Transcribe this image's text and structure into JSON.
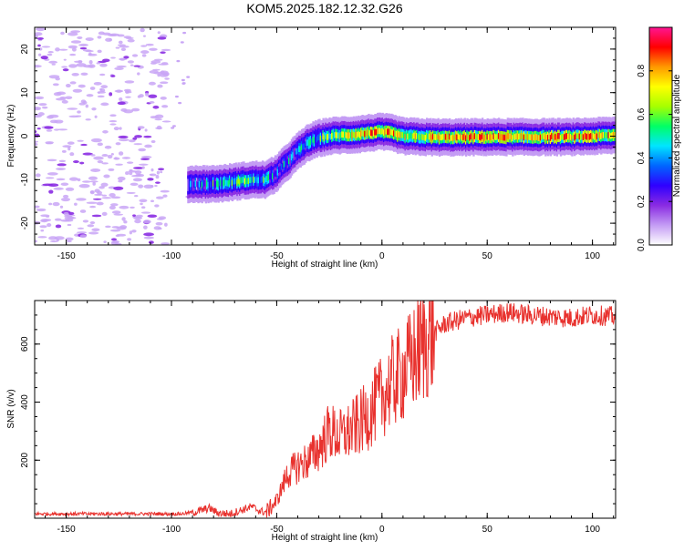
{
  "title": "KOM5.2025.182.12.32.G26",
  "chart_data": [
    {
      "type": "heatmap",
      "xlabel": "Height of straight line (km)",
      "ylabel": "Frequency (Hz)",
      "xlim": [
        -165,
        111
      ],
      "ylim": [
        -25,
        25
      ],
      "xticks": [
        -150,
        -100,
        -50,
        0,
        50,
        100
      ],
      "yticks": [
        -20,
        -10,
        0,
        10,
        20
      ],
      "colorbar": {
        "label": "Normalized spectral amplitude",
        "range": [
          0,
          1
        ],
        "ticks": [
          "0.0",
          "0.2",
          "0.4",
          "0.6",
          "0.8"
        ],
        "colors": [
          "#ffffff",
          "#c49cf4",
          "#8a2be2",
          "#2f00ff",
          "#0066ff",
          "#00e5ff",
          "#00ff66",
          "#a6ff00",
          "#ffff00",
          "#ff9900",
          "#ff0000",
          "#ff1493"
        ]
      },
      "ridge": {
        "x": [
          -92,
          -85,
          -80,
          -75,
          -70,
          -65,
          -60,
          -55,
          -50,
          -45,
          -40,
          -35,
          -30,
          -25,
          -20,
          -15,
          -10,
          -5,
          0,
          5,
          10,
          20,
          30,
          50,
          70,
          90,
          111
        ],
        "freq": [
          -11,
          -11,
          -11,
          -10.8,
          -10.5,
          -10.2,
          -10,
          -10,
          -8.5,
          -6,
          -3.5,
          -1.5,
          -0.5,
          0,
          0.2,
          0.3,
          0.5,
          0.8,
          1,
          0.7,
          0,
          -0.2,
          -0.3,
          -0.2,
          -0.2,
          -0.2,
          0.2
        ],
        "amplitude": [
          0.3,
          0.35,
          0.45,
          0.4,
          0.5,
          0.55,
          0.45,
          0.5,
          0.4,
          0.35,
          0.35,
          0.45,
          0.5,
          0.55,
          0.6,
          0.65,
          0.7,
          0.75,
          0.8,
          0.75,
          0.7,
          0.7,
          0.75,
          0.8,
          0.75,
          0.8,
          0.7
        ]
      }
    },
    {
      "type": "line",
      "xlabel": "Height of straight line (km)",
      "ylabel": "SNR (v/v)",
      "xlim": [
        -165,
        111
      ],
      "ylim": [
        0,
        750
      ],
      "xticks": [
        -150,
        -100,
        -50,
        0,
        50,
        100
      ],
      "yticks": [
        200,
        400,
        600
      ],
      "color": "#e8322e",
      "series": [
        {
          "x": [
            -165,
            -150,
            -130,
            -110,
            -95,
            -88,
            -82,
            -78,
            -72,
            -66,
            -62,
            -58,
            -55,
            -50,
            -45,
            -40,
            -35,
            -30,
            -25,
            -20,
            -15,
            -10,
            -5,
            0,
            5,
            10,
            15,
            20,
            25,
            30,
            40,
            50,
            60,
            70,
            80,
            90,
            100,
            111
          ],
          "values": [
            15,
            15,
            15,
            15,
            15,
            22,
            35,
            18,
            15,
            30,
            40,
            25,
            20,
            60,
            150,
            180,
            200,
            240,
            300,
            280,
            300,
            330,
            370,
            420,
            470,
            500,
            550,
            600,
            640,
            670,
            690,
            700,
            710,
            700,
            695,
            690,
            700,
            695
          ]
        }
      ]
    }
  ]
}
